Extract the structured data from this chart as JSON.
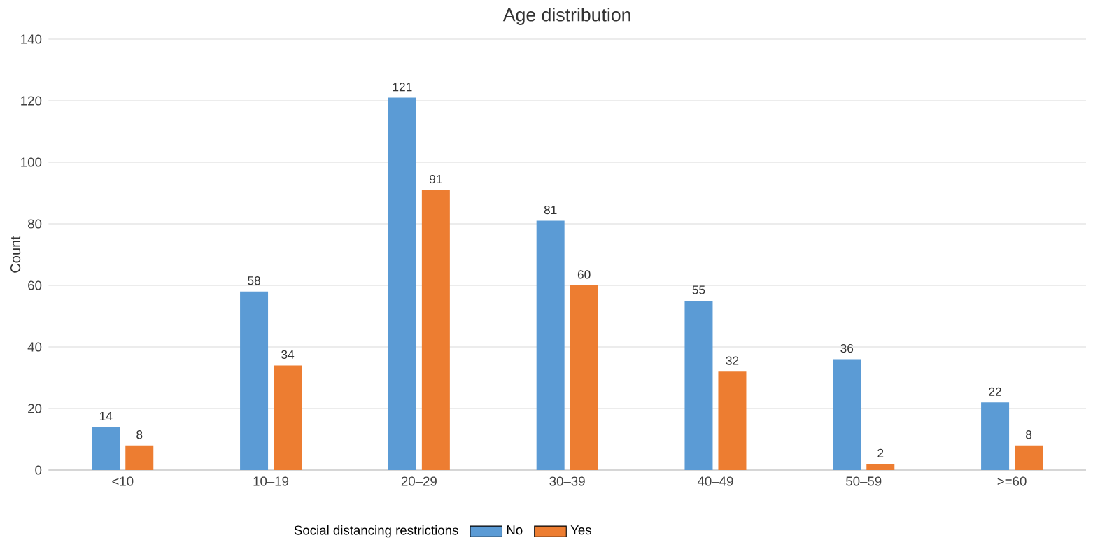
{
  "chart_data": {
    "type": "bar",
    "title": "Age distribution",
    "ylabel": "Count",
    "legend_title": "Social distancing restrictions",
    "categories": [
      "<10",
      "10–19",
      "20–29",
      "30–39",
      "40–49",
      "50–59",
      ">=60"
    ],
    "series": [
      {
        "name": "No",
        "color": "#5b9bd5",
        "values": [
          14,
          58,
          121,
          81,
          55,
          36,
          22
        ]
      },
      {
        "name": "Yes",
        "color": "#ed7d31",
        "values": [
          8,
          34,
          91,
          60,
          32,
          2,
          8
        ]
      }
    ],
    "ylim": [
      0,
      140
    ],
    "yticks": [
      0,
      20,
      40,
      60,
      80,
      100,
      120,
      140
    ],
    "grid": "y",
    "legend": "bottom",
    "data_labels": true
  }
}
